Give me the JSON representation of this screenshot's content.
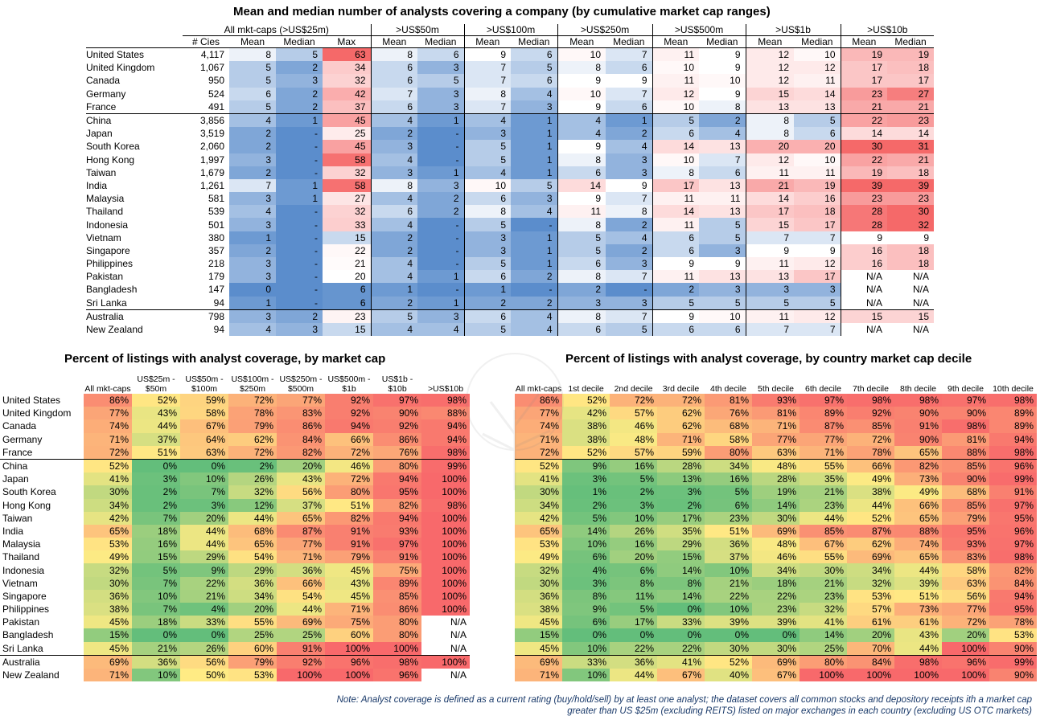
{
  "top": {
    "title": "Mean and median number of analysts covering a company (by cumulative market cap ranges)",
    "group_headers": [
      "All mkt-caps (>US$25m)",
      ">US$50m",
      ">US$100m",
      ">US$250m",
      ">US$500m",
      ">US$1b",
      ">US$10b"
    ],
    "col_headers": [
      "# Cies",
      "Mean",
      "Median",
      "Max",
      "Mean",
      "Median",
      "Mean",
      "Median",
      "Mean",
      "Median",
      "Mean",
      "Median",
      "Mean",
      "Median",
      "Mean",
      "Median"
    ],
    "rows": [
      {
        "country": "United States",
        "cies": "4,117",
        "v": [
          "8",
          "5",
          "63",
          "8",
          "6",
          "9",
          "6",
          "10",
          "7",
          "11",
          "9",
          "12",
          "10",
          "19",
          "19"
        ]
      },
      {
        "country": "United Kingdom",
        "cies": "1,067",
        "v": [
          "5",
          "2",
          "34",
          "6",
          "3",
          "7",
          "5",
          "8",
          "6",
          "10",
          "9",
          "12",
          "12",
          "17",
          "18"
        ]
      },
      {
        "country": "Canada",
        "cies": "950",
        "v": [
          "5",
          "3",
          "32",
          "6",
          "5",
          "7",
          "6",
          "9",
          "9",
          "11",
          "10",
          "12",
          "11",
          "17",
          "17"
        ]
      },
      {
        "country": "Germany",
        "cies": "524",
        "v": [
          "6",
          "2",
          "42",
          "7",
          "3",
          "8",
          "4",
          "10",
          "7",
          "12",
          "9",
          "15",
          "14",
          "23",
          "27"
        ]
      },
      {
        "country": "France",
        "cies": "491",
        "v": [
          "5",
          "2",
          "37",
          "6",
          "3",
          "7",
          "3",
          "9",
          "6",
          "10",
          "8",
          "13",
          "13",
          "21",
          "21"
        ]
      },
      {
        "country": "China",
        "cies": "3,856",
        "v": [
          "4",
          "1",
          "45",
          "4",
          "1",
          "4",
          "1",
          "4",
          "1",
          "5",
          "2",
          "8",
          "5",
          "22",
          "23"
        ]
      },
      {
        "country": "Japan",
        "cies": "3,519",
        "v": [
          "2",
          "-",
          "25",
          "2",
          "-",
          "3",
          "1",
          "4",
          "2",
          "6",
          "4",
          "8",
          "6",
          "14",
          "14"
        ]
      },
      {
        "country": "South Korea",
        "cies": "2,060",
        "v": [
          "2",
          "-",
          "45",
          "3",
          "-",
          "5",
          "1",
          "9",
          "4",
          "14",
          "13",
          "20",
          "20",
          "30",
          "31"
        ]
      },
      {
        "country": "Hong Kong",
        "cies": "1,997",
        "v": [
          "3",
          "-",
          "58",
          "4",
          "-",
          "5",
          "1",
          "8",
          "3",
          "10",
          "7",
          "12",
          "10",
          "22",
          "21"
        ]
      },
      {
        "country": "Taiwan",
        "cies": "1,679",
        "v": [
          "2",
          "-",
          "32",
          "3",
          "1",
          "4",
          "1",
          "6",
          "3",
          "8",
          "6",
          "11",
          "11",
          "19",
          "18"
        ]
      },
      {
        "country": "India",
        "cies": "1,261",
        "v": [
          "7",
          "1",
          "58",
          "8",
          "3",
          "10",
          "5",
          "14",
          "9",
          "17",
          "13",
          "21",
          "19",
          "39",
          "39"
        ]
      },
      {
        "country": "Malaysia",
        "cies": "581",
        "v": [
          "3",
          "1",
          "27",
          "4",
          "2",
          "6",
          "3",
          "9",
          "7",
          "11",
          "11",
          "14",
          "16",
          "23",
          "23"
        ]
      },
      {
        "country": "Thailand",
        "cies": "539",
        "v": [
          "4",
          "-",
          "32",
          "6",
          "2",
          "8",
          "4",
          "11",
          "8",
          "14",
          "13",
          "17",
          "18",
          "28",
          "30"
        ]
      },
      {
        "country": "Indonesia",
        "cies": "501",
        "v": [
          "3",
          "-",
          "33",
          "4",
          "-",
          "5",
          "-",
          "8",
          "2",
          "11",
          "5",
          "15",
          "17",
          "28",
          "32"
        ]
      },
      {
        "country": "Vietnam",
        "cies": "380",
        "v": [
          "1",
          "-",
          "15",
          "2",
          "-",
          "3",
          "1",
          "5",
          "4",
          "6",
          "5",
          "7",
          "7",
          "9",
          "9"
        ]
      },
      {
        "country": "Singapore",
        "cies": "357",
        "v": [
          "2",
          "-",
          "22",
          "2",
          "-",
          "3",
          "1",
          "5",
          "2",
          "6",
          "3",
          "9",
          "9",
          "16",
          "18"
        ]
      },
      {
        "country": "Philippines",
        "cies": "218",
        "v": [
          "3",
          "-",
          "21",
          "4",
          "-",
          "5",
          "1",
          "6",
          "3",
          "9",
          "9",
          "11",
          "12",
          "16",
          "18"
        ]
      },
      {
        "country": "Pakistan",
        "cies": "179",
        "v": [
          "3",
          "-",
          "20",
          "4",
          "1",
          "6",
          "2",
          "8",
          "7",
          "11",
          "13",
          "13",
          "17",
          "N/A",
          "N/A"
        ]
      },
      {
        "country": "Bangladesh",
        "cies": "147",
        "v": [
          "0",
          "-",
          "6",
          "1",
          "-",
          "1",
          "-",
          "2",
          "-",
          "2",
          "3",
          "3",
          "3",
          "N/A",
          "N/A"
        ]
      },
      {
        "country": "Sri Lanka",
        "cies": "94",
        "v": [
          "1",
          "-",
          "6",
          "2",
          "1",
          "2",
          "2",
          "3",
          "3",
          "5",
          "5",
          "5",
          "5",
          "N/A",
          "N/A"
        ]
      },
      {
        "country": "Australia",
        "cies": "798",
        "v": [
          "3",
          "2",
          "23",
          "5",
          "3",
          "6",
          "4",
          "8",
          "7",
          "9",
          "10",
          "11",
          "12",
          "15",
          "15"
        ]
      },
      {
        "country": "New Zealand",
        "cies": "94",
        "v": [
          "4",
          "3",
          "15",
          "4",
          "4",
          "5",
          "4",
          "6",
          "5",
          "6",
          "6",
          "7",
          "7",
          "N/A",
          "N/A"
        ]
      }
    ]
  },
  "left": {
    "title": "Percent of listings with analyst coverage, by market cap",
    "headers": [
      "All mkt-caps",
      "US$25m - $50m",
      "US$50m - $100m",
      "US$100m - $250m",
      "US$250m - $500m",
      "US$500m - $1b",
      "US$1b - $10b",
      ">US$10b"
    ],
    "rows": [
      {
        "country": "United States",
        "v": [
          "86%",
          "52%",
          "59%",
          "72%",
          "77%",
          "92%",
          "97%",
          "98%"
        ]
      },
      {
        "country": "United Kingdom",
        "v": [
          "77%",
          "43%",
          "58%",
          "78%",
          "83%",
          "92%",
          "90%",
          "88%"
        ]
      },
      {
        "country": "Canada",
        "v": [
          "74%",
          "44%",
          "67%",
          "79%",
          "86%",
          "94%",
          "92%",
          "94%"
        ]
      },
      {
        "country": "Germany",
        "v": [
          "71%",
          "37%",
          "64%",
          "62%",
          "84%",
          "66%",
          "86%",
          "94%"
        ]
      },
      {
        "country": "France",
        "v": [
          "72%",
          "51%",
          "63%",
          "72%",
          "82%",
          "72%",
          "76%",
          "98%"
        ]
      },
      {
        "country": "China",
        "v": [
          "52%",
          "0%",
          "0%",
          "2%",
          "20%",
          "46%",
          "80%",
          "99%"
        ]
      },
      {
        "country": "Japan",
        "v": [
          "41%",
          "3%",
          "10%",
          "26%",
          "43%",
          "72%",
          "94%",
          "100%"
        ]
      },
      {
        "country": "South Korea",
        "v": [
          "30%",
          "2%",
          "7%",
          "32%",
          "56%",
          "80%",
          "95%",
          "100%"
        ]
      },
      {
        "country": "Hong Kong",
        "v": [
          "34%",
          "2%",
          "3%",
          "12%",
          "37%",
          "51%",
          "82%",
          "98%"
        ]
      },
      {
        "country": "Taiwan",
        "v": [
          "42%",
          "7%",
          "20%",
          "44%",
          "65%",
          "82%",
          "94%",
          "100%"
        ]
      },
      {
        "country": "India",
        "v": [
          "65%",
          "18%",
          "44%",
          "68%",
          "87%",
          "91%",
          "93%",
          "100%"
        ]
      },
      {
        "country": "Malaysia",
        "v": [
          "53%",
          "16%",
          "44%",
          "65%",
          "77%",
          "91%",
          "97%",
          "100%"
        ]
      },
      {
        "country": "Thailand",
        "v": [
          "49%",
          "15%",
          "29%",
          "54%",
          "71%",
          "79%",
          "91%",
          "100%"
        ]
      },
      {
        "country": "Indonesia",
        "v": [
          "32%",
          "5%",
          "9%",
          "29%",
          "36%",
          "45%",
          "75%",
          "100%"
        ]
      },
      {
        "country": "Vietnam",
        "v": [
          "30%",
          "7%",
          "22%",
          "36%",
          "66%",
          "43%",
          "89%",
          "100%"
        ]
      },
      {
        "country": "Singapore",
        "v": [
          "36%",
          "10%",
          "21%",
          "34%",
          "54%",
          "45%",
          "85%",
          "100%"
        ]
      },
      {
        "country": "Philippines",
        "v": [
          "38%",
          "7%",
          "4%",
          "20%",
          "44%",
          "71%",
          "86%",
          "100%"
        ]
      },
      {
        "country": "Pakistan",
        "v": [
          "45%",
          "18%",
          "33%",
          "55%",
          "69%",
          "75%",
          "80%",
          "N/A"
        ]
      },
      {
        "country": "Bangladesh",
        "v": [
          "15%",
          "0%",
          "0%",
          "25%",
          "25%",
          "60%",
          "80%",
          "N/A"
        ]
      },
      {
        "country": "Sri Lanka",
        "v": [
          "45%",
          "21%",
          "26%",
          "60%",
          "91%",
          "100%",
          "100%",
          "N/A"
        ]
      },
      {
        "country": "Australia",
        "v": [
          "69%",
          "36%",
          "56%",
          "79%",
          "92%",
          "96%",
          "98%",
          "100%"
        ]
      },
      {
        "country": "New Zealand",
        "v": [
          "71%",
          "10%",
          "50%",
          "53%",
          "100%",
          "100%",
          "96%",
          "N/A"
        ]
      }
    ]
  },
  "right": {
    "title": "Percent of listings with analyst coverage, by country market cap decile",
    "headers": [
      "All mkt-caps",
      "1st decile",
      "2nd decile",
      "3rd decile",
      "4th decile",
      "5th decile",
      "6th decile",
      "7th decile",
      "8th decile",
      "9th decile",
      "10th decile"
    ],
    "rows": [
      [
        "86%",
        "52%",
        "72%",
        "72%",
        "81%",
        "93%",
        "97%",
        "98%",
        "98%",
        "97%",
        "98%"
      ],
      [
        "77%",
        "42%",
        "57%",
        "62%",
        "76%",
        "81%",
        "89%",
        "92%",
        "90%",
        "90%",
        "89%"
      ],
      [
        "74%",
        "38%",
        "46%",
        "62%",
        "68%",
        "71%",
        "87%",
        "85%",
        "91%",
        "98%",
        "89%"
      ],
      [
        "71%",
        "38%",
        "48%",
        "71%",
        "58%",
        "77%",
        "77%",
        "72%",
        "90%",
        "81%",
        "94%"
      ],
      [
        "72%",
        "52%",
        "57%",
        "59%",
        "80%",
        "63%",
        "71%",
        "78%",
        "65%",
        "88%",
        "98%"
      ],
      [
        "52%",
        "9%",
        "16%",
        "28%",
        "34%",
        "48%",
        "55%",
        "66%",
        "82%",
        "85%",
        "96%"
      ],
      [
        "41%",
        "3%",
        "5%",
        "13%",
        "16%",
        "28%",
        "35%",
        "49%",
        "73%",
        "90%",
        "99%"
      ],
      [
        "30%",
        "1%",
        "2%",
        "3%",
        "5%",
        "19%",
        "21%",
        "38%",
        "49%",
        "68%",
        "91%"
      ],
      [
        "34%",
        "2%",
        "3%",
        "2%",
        "6%",
        "14%",
        "23%",
        "44%",
        "66%",
        "85%",
        "97%"
      ],
      [
        "42%",
        "5%",
        "10%",
        "17%",
        "23%",
        "30%",
        "44%",
        "52%",
        "65%",
        "79%",
        "95%"
      ],
      [
        "65%",
        "14%",
        "26%",
        "35%",
        "51%",
        "69%",
        "85%",
        "87%",
        "88%",
        "95%",
        "96%"
      ],
      [
        "53%",
        "10%",
        "16%",
        "29%",
        "36%",
        "48%",
        "67%",
        "62%",
        "74%",
        "93%",
        "97%"
      ],
      [
        "49%",
        "6%",
        "20%",
        "15%",
        "37%",
        "46%",
        "55%",
        "69%",
        "65%",
        "83%",
        "98%"
      ],
      [
        "32%",
        "4%",
        "6%",
        "14%",
        "10%",
        "34%",
        "30%",
        "34%",
        "44%",
        "58%",
        "82%"
      ],
      [
        "30%",
        "3%",
        "8%",
        "8%",
        "21%",
        "18%",
        "21%",
        "32%",
        "39%",
        "63%",
        "84%"
      ],
      [
        "36%",
        "8%",
        "11%",
        "14%",
        "22%",
        "22%",
        "23%",
        "53%",
        "51%",
        "56%",
        "94%"
      ],
      [
        "38%",
        "9%",
        "5%",
        "0%",
        "10%",
        "23%",
        "32%",
        "57%",
        "73%",
        "77%",
        "95%"
      ],
      [
        "45%",
        "6%",
        "17%",
        "33%",
        "39%",
        "39%",
        "41%",
        "61%",
        "61%",
        "72%",
        "78%"
      ],
      [
        "15%",
        "0%",
        "0%",
        "0%",
        "0%",
        "0%",
        "14%",
        "20%",
        "43%",
        "20%",
        "53%"
      ],
      [
        "45%",
        "10%",
        "22%",
        "22%",
        "30%",
        "30%",
        "25%",
        "70%",
        "44%",
        "100%",
        "90%"
      ],
      [
        "69%",
        "33%",
        "36%",
        "41%",
        "52%",
        "69%",
        "80%",
        "84%",
        "98%",
        "96%",
        "99%"
      ],
      [
        "71%",
        "10%",
        "44%",
        "67%",
        "40%",
        "67%",
        "100%",
        "100%",
        "100%",
        "100%",
        "90%"
      ]
    ]
  },
  "note": "Note: Analyst coverage is defined as a current rating (buy/hold/sell) by at least one analyst; the dataset covers all common stocks and depository receipts ith a market cap greater than US $25m (excluding REITS) listed on major exchanges in each country (excluding US OTC markets)"
}
